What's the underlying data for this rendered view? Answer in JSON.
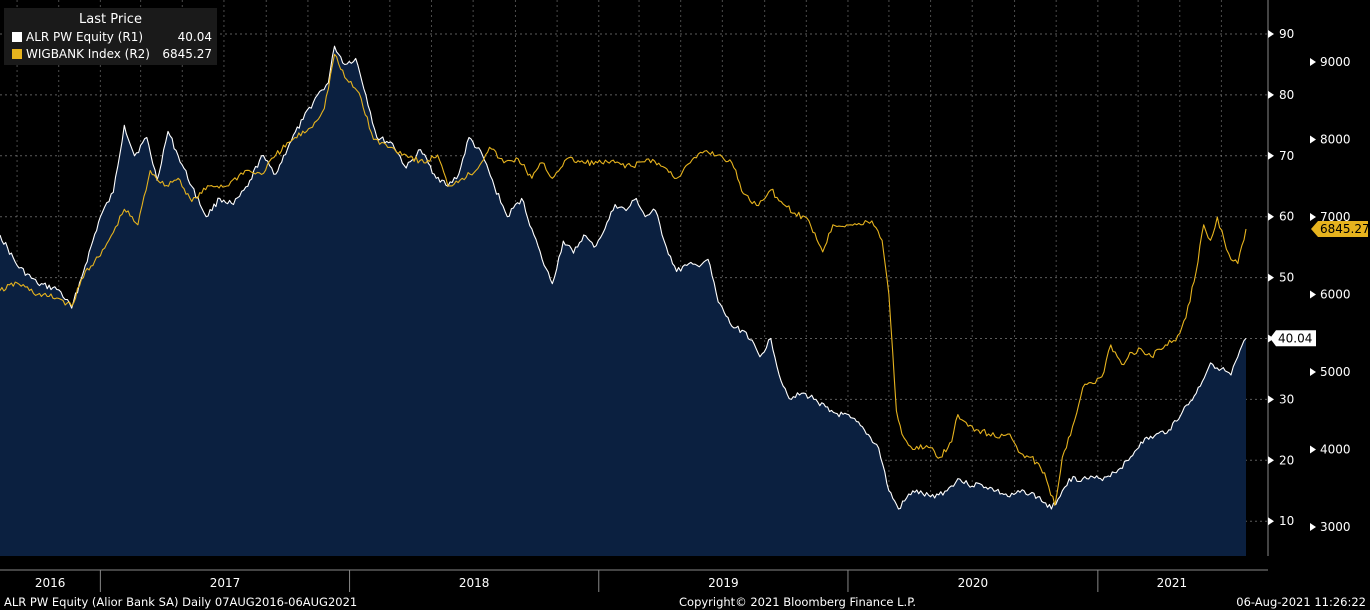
{
  "legend": {
    "title": "Last Price",
    "items": [
      {
        "label": "ALR PW Equity  (R1)",
        "value": "40.04",
        "color": "#ffffff"
      },
      {
        "label": "WIGBANK Index  (R2)",
        "value": "6845.27",
        "color": "#e6b31e"
      }
    ]
  },
  "footer": {
    "left": "ALR PW Equity (Alior Bank SA)  Daily 07AUG2016-06AUG2021",
    "center": "Copyright© 2021 Bloomberg Finance L.P.",
    "right": "06-Aug-2021 11:26:22"
  },
  "chart_data": {
    "type": "line",
    "x_start": "2016-08-07",
    "x_end": "2021-08-06",
    "x_tick_labels": [
      "2016",
      "2017",
      "2018",
      "2019",
      "2020",
      "2021"
    ],
    "axes": {
      "R1": {
        "ticks": [
          10,
          20,
          30,
          40,
          50,
          60,
          70,
          80,
          90
        ],
        "last_value_label": "40.04"
      },
      "R2": {
        "ticks": [
          3000,
          4000,
          5000,
          6000,
          7000,
          8000,
          9000
        ],
        "last_value_label": "6845.27"
      }
    },
    "grid": true,
    "background": "#000000",
    "series": [
      {
        "name": "ALR PW Equity  (R1)",
        "axis": "R1",
        "style": "area",
        "color": "#ffffff",
        "fill": "#0b2040",
        "points": [
          [
            "2016-08-07",
            57
          ],
          [
            "2016-09-01",
            52
          ],
          [
            "2016-10-01",
            49
          ],
          [
            "2016-11-01",
            48
          ],
          [
            "2016-11-20",
            45
          ],
          [
            "2016-12-10",
            52
          ],
          [
            "2017-01-01",
            60
          ],
          [
            "2017-01-20",
            64
          ],
          [
            "2017-02-05",
            75
          ],
          [
            "2017-02-20",
            70
          ],
          [
            "2017-03-10",
            73
          ],
          [
            "2017-03-25",
            66
          ],
          [
            "2017-04-10",
            74
          ],
          [
            "2017-04-25",
            70
          ],
          [
            "2017-05-15",
            65
          ],
          [
            "2017-06-05",
            60
          ],
          [
            "2017-06-25",
            63
          ],
          [
            "2017-07-15",
            62
          ],
          [
            "2017-08-05",
            65
          ],
          [
            "2017-08-25",
            70
          ],
          [
            "2017-09-15",
            67
          ],
          [
            "2017-10-05",
            72
          ],
          [
            "2017-10-25",
            76
          ],
          [
            "2017-11-15",
            80
          ],
          [
            "2017-12-01",
            82
          ],
          [
            "2017-12-10",
            88
          ],
          [
            "2017-12-25",
            85
          ],
          [
            "2018-01-10",
            86
          ],
          [
            "2018-01-25",
            80
          ],
          [
            "2018-02-10",
            73
          ],
          [
            "2018-03-05",
            72
          ],
          [
            "2018-03-25",
            68
          ],
          [
            "2018-04-15",
            71
          ],
          [
            "2018-05-05",
            67
          ],
          [
            "2018-05-25",
            65
          ],
          [
            "2018-06-10",
            67
          ],
          [
            "2018-06-25",
            73
          ],
          [
            "2018-07-15",
            70
          ],
          [
            "2018-08-01",
            65
          ],
          [
            "2018-08-20",
            60
          ],
          [
            "2018-09-10",
            63
          ],
          [
            "2018-09-25",
            58
          ],
          [
            "2018-10-10",
            53
          ],
          [
            "2018-10-25",
            49
          ],
          [
            "2018-11-10",
            56
          ],
          [
            "2018-11-25",
            54
          ],
          [
            "2018-12-10",
            57
          ],
          [
            "2018-12-25",
            55
          ],
          [
            "2019-01-10",
            58
          ],
          [
            "2019-01-25",
            62
          ],
          [
            "2019-02-10",
            61
          ],
          [
            "2019-02-25",
            63
          ],
          [
            "2019-03-10",
            60
          ],
          [
            "2019-03-25",
            61
          ],
          [
            "2019-04-10",
            55
          ],
          [
            "2019-04-25",
            51
          ],
          [
            "2019-05-10",
            52
          ],
          [
            "2019-05-25",
            52
          ],
          [
            "2019-06-10",
            53
          ],
          [
            "2019-06-25",
            46
          ],
          [
            "2019-07-15",
            42
          ],
          [
            "2019-08-05",
            41
          ],
          [
            "2019-08-25",
            37
          ],
          [
            "2019-09-10",
            40
          ],
          [
            "2019-09-25",
            33
          ],
          [
            "2019-10-10",
            30
          ],
          [
            "2019-10-25",
            31
          ],
          [
            "2019-11-15",
            30
          ],
          [
            "2019-12-05",
            28
          ],
          [
            "2020-01-05",
            27
          ],
          [
            "2020-01-25",
            25
          ],
          [
            "2020-02-15",
            22
          ],
          [
            "2020-03-01",
            15
          ],
          [
            "2020-03-15",
            12
          ],
          [
            "2020-04-05",
            15
          ],
          [
            "2020-05-01",
            14
          ],
          [
            "2020-05-25",
            15
          ],
          [
            "2020-06-10",
            17
          ],
          [
            "2020-06-25",
            16
          ],
          [
            "2020-07-15",
            16
          ],
          [
            "2020-08-05",
            15
          ],
          [
            "2020-08-25",
            14
          ],
          [
            "2020-09-15",
            15
          ],
          [
            "2020-10-05",
            14
          ],
          [
            "2020-10-25",
            12
          ],
          [
            "2020-11-10",
            15
          ],
          [
            "2020-11-20",
            17
          ],
          [
            "2020-12-10",
            17
          ],
          [
            "2021-01-05",
            17
          ],
          [
            "2021-01-25",
            18
          ],
          [
            "2021-02-15",
            20
          ],
          [
            "2021-03-05",
            23
          ],
          [
            "2021-03-25",
            24
          ],
          [
            "2021-04-15",
            25
          ],
          [
            "2021-05-05",
            28
          ],
          [
            "2021-05-25",
            31
          ],
          [
            "2021-06-15",
            36
          ],
          [
            "2021-07-01",
            35
          ],
          [
            "2021-07-15",
            34
          ],
          [
            "2021-07-25",
            37
          ],
          [
            "2021-08-06",
            40.04
          ]
        ]
      },
      {
        "name": "WIGBANK Index  (R2)",
        "axis": "R2",
        "style": "line",
        "color": "#e6b31e",
        "points": [
          [
            "2016-08-07",
            6050
          ],
          [
            "2016-09-01",
            6150
          ],
          [
            "2016-10-01",
            6000
          ],
          [
            "2016-11-01",
            5950
          ],
          [
            "2016-11-20",
            5850
          ],
          [
            "2016-12-10",
            6300
          ],
          [
            "2017-01-01",
            6500
          ],
          [
            "2017-01-20",
            6800
          ],
          [
            "2017-02-05",
            7100
          ],
          [
            "2017-02-25",
            6900
          ],
          [
            "2017-03-15",
            7600
          ],
          [
            "2017-04-05",
            7400
          ],
          [
            "2017-04-25",
            7500
          ],
          [
            "2017-05-15",
            7200
          ],
          [
            "2017-06-10",
            7400
          ],
          [
            "2017-07-05",
            7400
          ],
          [
            "2017-08-01",
            7600
          ],
          [
            "2017-08-25",
            7550
          ],
          [
            "2017-09-15",
            7800
          ],
          [
            "2017-10-10",
            8000
          ],
          [
            "2017-11-05",
            8150
          ],
          [
            "2017-11-25",
            8400
          ],
          [
            "2017-12-10",
            9100
          ],
          [
            "2017-12-25",
            8800
          ],
          [
            "2018-01-15",
            8600
          ],
          [
            "2018-02-05",
            8000
          ],
          [
            "2018-03-01",
            7900
          ],
          [
            "2018-03-25",
            7800
          ],
          [
            "2018-04-20",
            7700
          ],
          [
            "2018-05-10",
            7800
          ],
          [
            "2018-05-25",
            7400
          ],
          [
            "2018-06-15",
            7500
          ],
          [
            "2018-07-05",
            7600
          ],
          [
            "2018-07-25",
            7900
          ],
          [
            "2018-08-15",
            7700
          ],
          [
            "2018-09-05",
            7750
          ],
          [
            "2018-09-25",
            7500
          ],
          [
            "2018-10-10",
            7700
          ],
          [
            "2018-10-25",
            7500
          ],
          [
            "2018-11-15",
            7750
          ],
          [
            "2018-12-10",
            7700
          ],
          [
            "2019-01-05",
            7700
          ],
          [
            "2019-01-25",
            7700
          ],
          [
            "2019-02-20",
            7650
          ],
          [
            "2019-03-15",
            7750
          ],
          [
            "2019-04-05",
            7650
          ],
          [
            "2019-04-25",
            7500
          ],
          [
            "2019-05-15",
            7700
          ],
          [
            "2019-06-05",
            7850
          ],
          [
            "2019-06-25",
            7800
          ],
          [
            "2019-07-15",
            7700
          ],
          [
            "2019-08-01",
            7300
          ],
          [
            "2019-08-20",
            7150
          ],
          [
            "2019-09-10",
            7350
          ],
          [
            "2019-09-25",
            7200
          ],
          [
            "2019-10-15",
            7050
          ],
          [
            "2019-11-05",
            6950
          ],
          [
            "2019-11-25",
            6550
          ],
          [
            "2019-12-10",
            6900
          ],
          [
            "2020-01-05",
            6900
          ],
          [
            "2020-01-20",
            6900
          ],
          [
            "2020-02-05",
            6950
          ],
          [
            "2020-02-20",
            6700
          ],
          [
            "2020-03-01",
            6000
          ],
          [
            "2020-03-12",
            4500
          ],
          [
            "2020-03-20",
            4200
          ],
          [
            "2020-04-05",
            4000
          ],
          [
            "2020-04-25",
            4050
          ],
          [
            "2020-05-15",
            3900
          ],
          [
            "2020-06-01",
            4100
          ],
          [
            "2020-06-10",
            4450
          ],
          [
            "2020-06-25",
            4300
          ],
          [
            "2020-07-10",
            4250
          ],
          [
            "2020-07-25",
            4200
          ],
          [
            "2020-08-10",
            4150
          ],
          [
            "2020-08-25",
            4200
          ],
          [
            "2020-09-10",
            3950
          ],
          [
            "2020-09-25",
            3900
          ],
          [
            "2020-10-15",
            3700
          ],
          [
            "2020-10-30",
            3280
          ],
          [
            "2020-11-10",
            3900
          ],
          [
            "2020-11-25",
            4300
          ],
          [
            "2020-12-10",
            4800
          ],
          [
            "2020-12-25",
            4850
          ],
          [
            "2021-01-10",
            5000
          ],
          [
            "2021-01-20",
            5350
          ],
          [
            "2021-02-05",
            5100
          ],
          [
            "2021-02-20",
            5250
          ],
          [
            "2021-03-05",
            5300
          ],
          [
            "2021-03-20",
            5200
          ],
          [
            "2021-04-10",
            5350
          ],
          [
            "2021-04-25",
            5400
          ],
          [
            "2021-05-10",
            5700
          ],
          [
            "2021-05-25",
            6300
          ],
          [
            "2021-06-05",
            6900
          ],
          [
            "2021-06-15",
            6700
          ],
          [
            "2021-06-25",
            7000
          ],
          [
            "2021-07-05",
            6700
          ],
          [
            "2021-07-15",
            6450
          ],
          [
            "2021-07-25",
            6400
          ],
          [
            "2021-08-06",
            6845.27
          ]
        ]
      }
    ]
  }
}
